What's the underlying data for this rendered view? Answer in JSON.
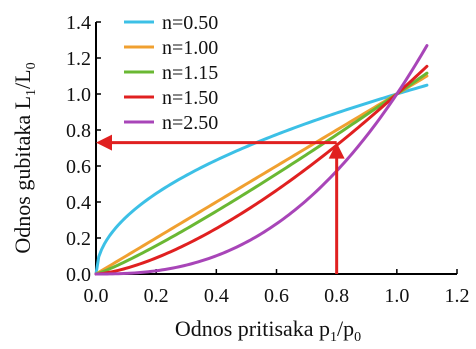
{
  "chart_data": {
    "type": "line",
    "xlabel": {
      "main": "Odnos pritisaka p",
      "sub1": "1",
      "mid": "/p",
      "sub2": "0"
    },
    "ylabel": {
      "main": "Odnos gubitaka L",
      "sub1": "1",
      "mid": "/L",
      "sub2": "0"
    },
    "xlim": [
      0.0,
      1.2
    ],
    "ylim": [
      0.0,
      1.4
    ],
    "x_ticks": [
      "0.0",
      "0.2",
      "0.4",
      "0.6",
      "0.8",
      "1.0",
      "1.2"
    ],
    "y_ticks": [
      "0.0",
      "0.2",
      "0.4",
      "0.6",
      "0.8",
      "1.0",
      "1.2",
      "1.4"
    ],
    "grid": false,
    "legend_position": "top-left",
    "series": [
      {
        "name": "n=0.50",
        "exponent": 0.5,
        "color": "#3cc0e6",
        "x_max": 1.1
      },
      {
        "name": "n=1.00",
        "exponent": 1.0,
        "color": "#f0a030",
        "x_max": 1.1
      },
      {
        "name": "n=1.15",
        "exponent": 1.15,
        "color": "#6ab833",
        "x_max": 1.1
      },
      {
        "name": "n=1.50",
        "exponent": 1.5,
        "color": "#e02020",
        "x_max": 1.1
      },
      {
        "name": "n=2.50",
        "exponent": 2.5,
        "color": "#a845b8",
        "x_max": 1.1
      }
    ],
    "annotation": {
      "color": "#e02020",
      "x": 0.8,
      "y": 0.73
    }
  }
}
